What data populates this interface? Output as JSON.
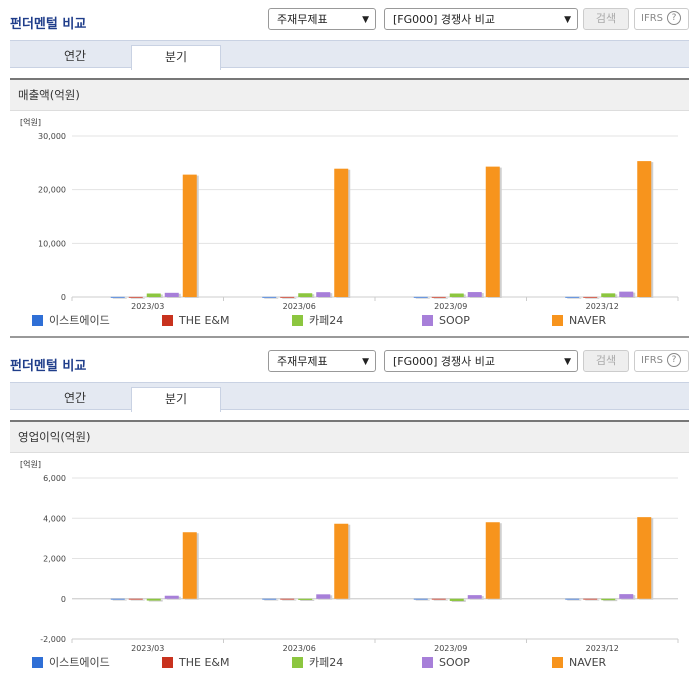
{
  "sections": [
    {
      "header_title": "펀더멘털 비교",
      "select1": "주재무제표",
      "select2": "[FG000] 경쟁사 비교",
      "search_label": "검색",
      "ifrs_label": "IFRS",
      "help_glyph": "?",
      "tabs": [
        "연간",
        "분기"
      ],
      "active_tab": "분기",
      "panel_title": "매출액(억원)",
      "unit_label": "[억원]"
    },
    {
      "header_title": "펀더멘털 비교",
      "select1": "주재무제표",
      "select2": "[FG000] 경쟁사 비교",
      "search_label": "검색",
      "ifrs_label": "IFRS",
      "help_glyph": "?",
      "tabs": [
        "연간",
        "분기"
      ],
      "active_tab": "분기",
      "panel_title": "영업이익(억원)",
      "unit_label": "[억원]"
    }
  ],
  "legend": [
    {
      "name": "이스트에이드",
      "color": "#2f6fd6"
    },
    {
      "name": "THE E&M",
      "color": "#c8321e"
    },
    {
      "name": "카페24",
      "color": "#8cc63f"
    },
    {
      "name": "SOOP",
      "color": "#a77fd9"
    },
    {
      "name": "NAVER",
      "color": "#f7941d"
    }
  ],
  "chart_data": [
    {
      "type": "bar",
      "unit": "[억원]",
      "categories": [
        "2023/03",
        "2023/06",
        "2023/09",
        "2023/12"
      ],
      "ylim": [
        0,
        30000
      ],
      "yticks": [
        0,
        10000,
        20000,
        30000
      ],
      "ytick_labels": [
        "0",
        "10,000",
        "20,000",
        "30,000"
      ],
      "grid": true,
      "series": [
        {
          "name": "이스트에이드",
          "color": "#2f6fd6",
          "values": [
            20,
            20,
            20,
            20
          ]
        },
        {
          "name": "THE E&M",
          "color": "#c8321e",
          "values": [
            15,
            15,
            15,
            15
          ]
        },
        {
          "name": "카페24",
          "color": "#8cc63f",
          "values": [
            650,
            700,
            650,
            680
          ]
        },
        {
          "name": "SOOP",
          "color": "#a77fd9",
          "values": [
            780,
            900,
            920,
            1000
          ]
        },
        {
          "name": "NAVER",
          "color": "#f7941d",
          "values": [
            22804,
            23907,
            24295,
            25322
          ]
        }
      ]
    },
    {
      "type": "bar",
      "unit": "[억원]",
      "categories": [
        "2023/03",
        "2023/06",
        "2023/09",
        "2023/12"
      ],
      "ylim": [
        -2000,
        6000
      ],
      "yticks": [
        -2000,
        0,
        2000,
        4000,
        6000
      ],
      "ytick_labels": [
        "-2,000",
        "0",
        "2,000",
        "4,000",
        "6,000"
      ],
      "grid": true,
      "series": [
        {
          "name": "이스트에이드",
          "color": "#2f6fd6",
          "values": [
            -5,
            -5,
            -5,
            -5
          ]
        },
        {
          "name": "THE E&M",
          "color": "#c8321e",
          "values": [
            -10,
            -10,
            -10,
            -10
          ]
        },
        {
          "name": "카페24",
          "color": "#8cc63f",
          "values": [
            -90,
            -60,
            -110,
            -70
          ]
        },
        {
          "name": "SOOP",
          "color": "#a77fd9",
          "values": [
            150,
            220,
            180,
            230
          ]
        },
        {
          "name": "NAVER",
          "color": "#f7941d",
          "values": [
            3305,
            3727,
            3802,
            4055
          ]
        }
      ]
    }
  ]
}
